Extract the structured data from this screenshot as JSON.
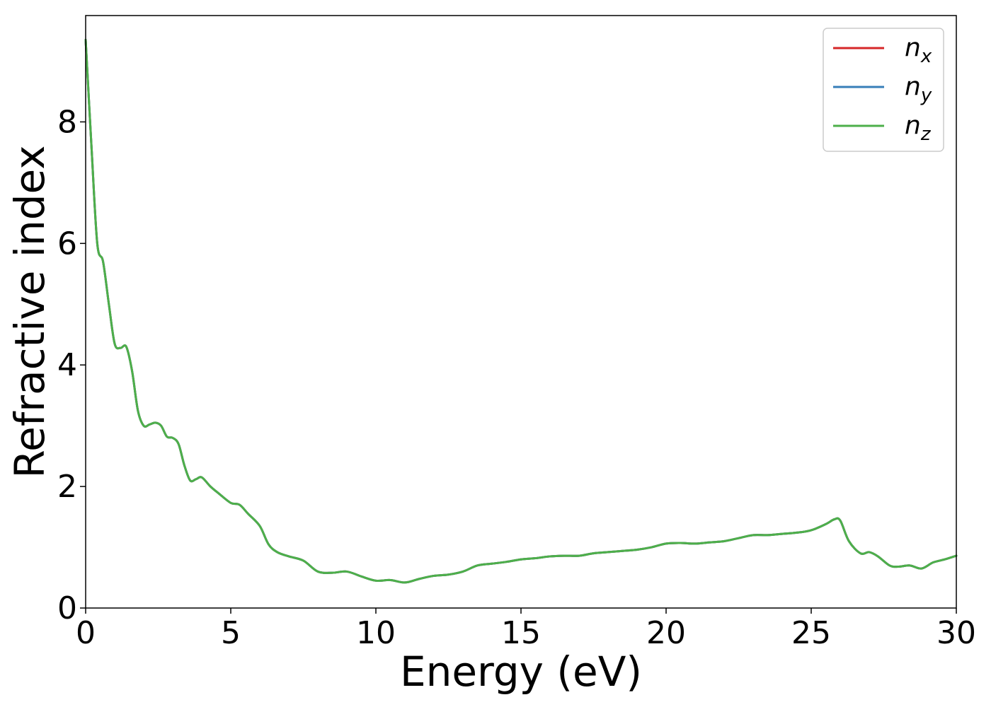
{
  "chart_data": {
    "type": "line",
    "title": "",
    "xlabel": "Energy (eV)",
    "ylabel": "Refractive index",
    "xlim": [
      0,
      30
    ],
    "ylim": [
      0,
      9.75
    ],
    "xticks": [
      0,
      5,
      10,
      15,
      20,
      25,
      30
    ],
    "yticks": [
      0,
      2,
      4,
      6,
      8
    ],
    "grid": false,
    "legend_position": "top-right",
    "x": [
      0,
      0.2,
      0.4,
      0.6,
      0.8,
      1.0,
      1.2,
      1.4,
      1.6,
      1.8,
      2.0,
      2.2,
      2.4,
      2.6,
      2.8,
      3.0,
      3.2,
      3.4,
      3.6,
      3.8,
      4.0,
      4.3,
      4.6,
      5.0,
      5.3,
      5.6,
      6.0,
      6.3,
      6.6,
      7.0,
      7.5,
      8.0,
      8.5,
      9.0,
      9.5,
      10.0,
      10.5,
      11.0,
      11.5,
      12.0,
      12.5,
      13.0,
      13.5,
      14.0,
      14.5,
      15.0,
      15.5,
      16.0,
      16.5,
      17.0,
      17.5,
      18.0,
      18.5,
      19.0,
      19.5,
      20.0,
      20.5,
      21.0,
      21.5,
      22.0,
      22.5,
      23.0,
      23.5,
      24.0,
      24.5,
      25.0,
      25.5,
      25.8,
      26.0,
      26.3,
      26.7,
      27.0,
      27.3,
      27.7,
      28.0,
      28.4,
      28.8,
      29.2,
      29.6,
      30.0
    ],
    "series": [
      {
        "name": "n_x",
        "legend_base": "n",
        "legend_sub": "x",
        "color": "#d62728",
        "values": [
          9.35,
          7.6,
          6.0,
          5.7,
          5.0,
          4.35,
          4.28,
          4.3,
          3.9,
          3.25,
          3.0,
          3.02,
          3.05,
          3.0,
          2.82,
          2.8,
          2.7,
          2.35,
          2.1,
          2.12,
          2.15,
          2.0,
          1.88,
          1.73,
          1.7,
          1.55,
          1.35,
          1.05,
          0.92,
          0.85,
          0.78,
          0.6,
          0.58,
          0.6,
          0.52,
          0.45,
          0.46,
          0.42,
          0.48,
          0.53,
          0.55,
          0.6,
          0.7,
          0.73,
          0.76,
          0.8,
          0.82,
          0.85,
          0.86,
          0.86,
          0.9,
          0.92,
          0.94,
          0.96,
          1.0,
          1.06,
          1.07,
          1.06,
          1.08,
          1.1,
          1.15,
          1.2,
          1.2,
          1.22,
          1.24,
          1.28,
          1.38,
          1.46,
          1.44,
          1.1,
          0.9,
          0.92,
          0.85,
          0.7,
          0.68,
          0.7,
          0.65,
          0.75,
          0.8,
          0.86
        ]
      },
      {
        "name": "n_y",
        "legend_base": "n",
        "legend_sub": "y",
        "color": "#377eb8",
        "values": [
          9.35,
          7.6,
          6.0,
          5.7,
          5.0,
          4.35,
          4.28,
          4.3,
          3.9,
          3.25,
          3.0,
          3.02,
          3.05,
          3.0,
          2.82,
          2.8,
          2.7,
          2.35,
          2.1,
          2.12,
          2.15,
          2.0,
          1.88,
          1.73,
          1.7,
          1.55,
          1.35,
          1.05,
          0.92,
          0.85,
          0.78,
          0.6,
          0.58,
          0.6,
          0.52,
          0.45,
          0.46,
          0.42,
          0.48,
          0.53,
          0.55,
          0.6,
          0.7,
          0.73,
          0.76,
          0.8,
          0.82,
          0.85,
          0.86,
          0.86,
          0.9,
          0.92,
          0.94,
          0.96,
          1.0,
          1.06,
          1.07,
          1.06,
          1.08,
          1.1,
          1.15,
          1.2,
          1.2,
          1.22,
          1.24,
          1.28,
          1.38,
          1.46,
          1.44,
          1.1,
          0.9,
          0.92,
          0.85,
          0.7,
          0.68,
          0.7,
          0.65,
          0.75,
          0.8,
          0.86
        ]
      },
      {
        "name": "n_z",
        "legend_base": "n",
        "legend_sub": "z",
        "color": "#4daf4a",
        "values": [
          9.35,
          7.6,
          6.0,
          5.7,
          5.0,
          4.35,
          4.28,
          4.3,
          3.9,
          3.25,
          3.0,
          3.02,
          3.05,
          3.0,
          2.82,
          2.8,
          2.7,
          2.35,
          2.1,
          2.12,
          2.15,
          2.0,
          1.88,
          1.73,
          1.7,
          1.55,
          1.35,
          1.05,
          0.92,
          0.85,
          0.78,
          0.6,
          0.58,
          0.6,
          0.52,
          0.45,
          0.46,
          0.42,
          0.48,
          0.53,
          0.55,
          0.6,
          0.7,
          0.73,
          0.76,
          0.8,
          0.82,
          0.85,
          0.86,
          0.86,
          0.9,
          0.92,
          0.94,
          0.96,
          1.0,
          1.06,
          1.07,
          1.06,
          1.08,
          1.1,
          1.15,
          1.2,
          1.2,
          1.22,
          1.24,
          1.28,
          1.38,
          1.46,
          1.44,
          1.1,
          0.9,
          0.92,
          0.85,
          0.7,
          0.68,
          0.7,
          0.65,
          0.75,
          0.8,
          0.86
        ]
      }
    ]
  }
}
